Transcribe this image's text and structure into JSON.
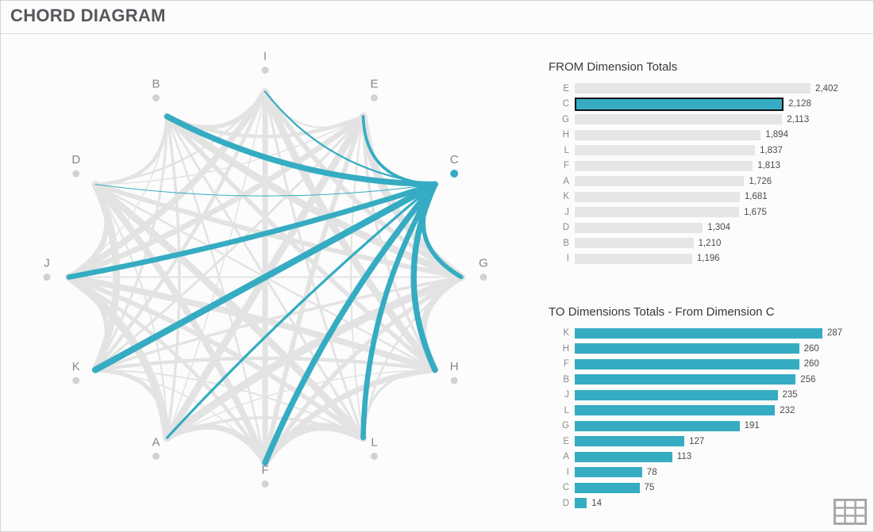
{
  "title": "CHORD DIAGRAM",
  "colors": {
    "accent": "#35acc2",
    "chord_gray": "#e3e3e3",
    "bar_gray": "#e6e6e6",
    "dot_gray": "#d2d2d2",
    "node_label": "#868686",
    "selected_border": "#151515"
  },
  "chord": {
    "selected_node": "C",
    "nodes": [
      {
        "label": "I",
        "angle": -90
      },
      {
        "label": "E",
        "angle": -60
      },
      {
        "label": "C",
        "angle": -30
      },
      {
        "label": "G",
        "angle": 0
      },
      {
        "label": "H",
        "angle": 30
      },
      {
        "label": "L",
        "angle": 60
      },
      {
        "label": "F",
        "angle": 90
      },
      {
        "label": "A",
        "angle": 120
      },
      {
        "label": "K",
        "angle": 150
      },
      {
        "label": "J",
        "angle": 180
      },
      {
        "label": "D",
        "angle": -150
      },
      {
        "label": "B",
        "angle": -120
      }
    ],
    "background_links": [
      [
        "I",
        "E",
        2
      ],
      [
        "I",
        "G",
        6
      ],
      [
        "I",
        "H",
        9
      ],
      [
        "I",
        "L",
        3
      ],
      [
        "I",
        "F",
        7
      ],
      [
        "I",
        "A",
        1.5
      ],
      [
        "I",
        "K",
        4.5
      ],
      [
        "I",
        "J",
        8
      ],
      [
        "I",
        "D",
        2.5
      ],
      [
        "I",
        "B",
        5.5
      ],
      [
        "E",
        "G",
        10
      ],
      [
        "E",
        "H",
        3.5
      ],
      [
        "E",
        "L",
        2
      ],
      [
        "E",
        "F",
        6
      ],
      [
        "E",
        "A",
        9
      ],
      [
        "E",
        "K",
        3
      ],
      [
        "E",
        "J",
        7
      ],
      [
        "E",
        "D",
        1.5
      ],
      [
        "E",
        "B",
        4.5
      ],
      [
        "G",
        "H",
        8
      ],
      [
        "G",
        "L",
        2.5
      ],
      [
        "G",
        "F",
        5.5
      ],
      [
        "G",
        "A",
        10
      ],
      [
        "G",
        "K",
        3.5
      ],
      [
        "G",
        "J",
        2
      ],
      [
        "G",
        "D",
        6
      ],
      [
        "G",
        "B",
        9
      ],
      [
        "H",
        "L",
        3
      ],
      [
        "H",
        "F",
        7
      ],
      [
        "H",
        "A",
        1.5
      ],
      [
        "H",
        "K",
        4.5
      ],
      [
        "H",
        "J",
        8
      ],
      [
        "H",
        "D",
        2.5
      ],
      [
        "H",
        "B",
        5.5
      ],
      [
        "L",
        "F",
        10
      ],
      [
        "L",
        "A",
        3.5
      ],
      [
        "L",
        "K",
        2
      ],
      [
        "L",
        "J",
        6
      ],
      [
        "L",
        "D",
        9
      ],
      [
        "L",
        "B",
        3
      ],
      [
        "F",
        "A",
        7
      ],
      [
        "F",
        "K",
        1.5
      ],
      [
        "F",
        "J",
        4.5
      ],
      [
        "F",
        "D",
        8
      ],
      [
        "F",
        "B",
        2.5
      ],
      [
        "A",
        "K",
        5.5
      ],
      [
        "A",
        "J",
        10
      ],
      [
        "A",
        "D",
        2
      ],
      [
        "A",
        "B",
        3.5
      ],
      [
        "K",
        "J",
        6
      ],
      [
        "K",
        "D",
        9
      ],
      [
        "K",
        "B",
        3
      ],
      [
        "J",
        "D",
        7
      ],
      [
        "J",
        "B",
        1.5
      ],
      [
        "D",
        "B",
        4.5
      ]
    ]
  },
  "chart_data": [
    {
      "type": "bar",
      "title": "FROM Dimension Totals",
      "categories": [
        "E",
        "C",
        "G",
        "H",
        "L",
        "F",
        "A",
        "K",
        "J",
        "D",
        "B",
        "I"
      ],
      "values": [
        2402,
        2128,
        2113,
        1894,
        1837,
        1813,
        1726,
        1681,
        1675,
        1304,
        1210,
        1196
      ],
      "value_labels": [
        "2,402",
        "2,128",
        "2,113",
        "1,894",
        "1,837",
        "1,813",
        "1,726",
        "1,681",
        "1,675",
        "1,304",
        "1,210",
        "1,196"
      ],
      "highlight": "C",
      "bar_color": "#e6e6e6",
      "highlight_color": "#35acc2",
      "xlim": [
        0,
        2402
      ],
      "legend": "none",
      "grid": false
    },
    {
      "type": "bar",
      "title": "TO Dimensions Totals - From Dimension C",
      "categories": [
        "K",
        "H",
        "F",
        "B",
        "J",
        "L",
        "G",
        "E",
        "A",
        "I",
        "C",
        "D"
      ],
      "values": [
        287,
        260,
        260,
        256,
        235,
        232,
        191,
        127,
        113,
        78,
        75,
        14
      ],
      "value_labels": [
        "287",
        "260",
        "260",
        "256",
        "235",
        "232",
        "191",
        "127",
        "113",
        "78",
        "75",
        "14"
      ],
      "bar_color": "#35acc2",
      "xlim": [
        0,
        287
      ],
      "legend": "none",
      "grid": false
    }
  ]
}
